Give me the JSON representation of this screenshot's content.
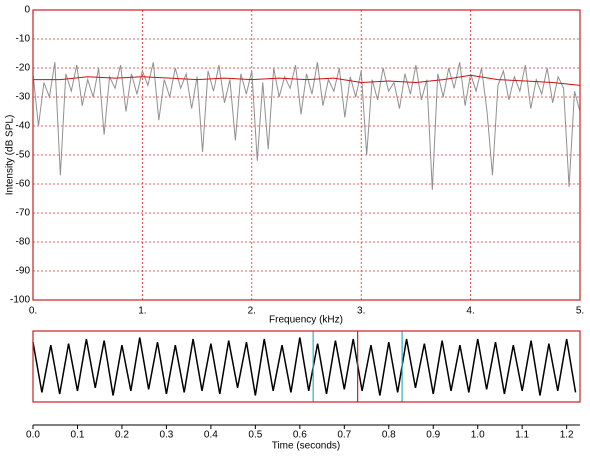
{
  "chart_data": [
    {
      "type": "line",
      "x_label": "Frequency (kHz)",
      "y_label": "Intensity (dB SPL)",
      "xlim": [
        0,
        5
      ],
      "ylim": [
        -100,
        0
      ],
      "xticks": [
        {
          "value": 0,
          "label": "0."
        },
        {
          "value": 1,
          "label": "1."
        },
        {
          "value": 2,
          "label": "2."
        },
        {
          "value": 3,
          "label": "3."
        },
        {
          "value": 4,
          "label": "4."
        },
        {
          "value": 5,
          "label": "5."
        }
      ],
      "yticks": [
        0,
        -10,
        -20,
        -30,
        -40,
        -50,
        -60,
        -70,
        -80,
        -90,
        -100
      ],
      "grid": true,
      "grid_color": "#e03030",
      "frame_color": "#cc2020",
      "series": [
        {
          "color": "#909090",
          "x": [
            0,
            0.05,
            0.1,
            0.15,
            0.2,
            0.25,
            0.3,
            0.35,
            0.4,
            0.45,
            0.5,
            0.55,
            0.6,
            0.65,
            0.7,
            0.75,
            0.8,
            0.85,
            0.9,
            0.95,
            1,
            1.05,
            1.1,
            1.15,
            1.2,
            1.25,
            1.3,
            1.35,
            1.4,
            1.45,
            1.5,
            1.55,
            1.6,
            1.65,
            1.7,
            1.75,
            1.8,
            1.85,
            1.9,
            1.95,
            2,
            2.05,
            2.1,
            2.15,
            2.2,
            2.25,
            2.3,
            2.35,
            2.4,
            2.45,
            2.5,
            2.55,
            2.6,
            2.65,
            2.7,
            2.75,
            2.8,
            2.85,
            2.9,
            2.95,
            3,
            3.05,
            3.1,
            3.15,
            3.2,
            3.25,
            3.3,
            3.35,
            3.4,
            3.45,
            3.5,
            3.55,
            3.6,
            3.65,
            3.7,
            3.75,
            3.8,
            3.85,
            3.9,
            3.95,
            4,
            4.05,
            4.1,
            4.15,
            4.2,
            4.25,
            4.3,
            4.35,
            4.4,
            4.45,
            4.5,
            4.55,
            4.6,
            4.65,
            4.7,
            4.75,
            4.8,
            4.85,
            4.9,
            4.95,
            5
          ],
          "values": [
            -22,
            -40,
            -25,
            -30,
            -18,
            -57,
            -22,
            -28,
            -19,
            -33,
            -24,
            -30,
            -20,
            -43,
            -23,
            -27,
            -19,
            -35,
            -22,
            -29,
            -21,
            -26,
            -18,
            -38,
            -24,
            -30,
            -20,
            -27,
            -22,
            -34,
            -23,
            -49,
            -21,
            -28,
            -19,
            -32,
            -24,
            -45,
            -22,
            -29,
            -21,
            -52,
            -25,
            -48,
            -20,
            -30,
            -23,
            -27,
            -19,
            -36,
            -22,
            -29,
            -18,
            -33,
            -24,
            -28,
            -20,
            -37,
            -23,
            -30,
            -21,
            -50,
            -24,
            -31,
            -20,
            -28,
            -25,
            -34,
            -22,
            -29,
            -19,
            -31,
            -24,
            -62,
            -22,
            -30,
            -20,
            -27,
            -18,
            -33,
            -22,
            -28,
            -20,
            -35,
            -57,
            -26,
            -21,
            -31,
            -23,
            -28,
            -19,
            -34,
            -24,
            -29,
            -20,
            -32,
            -23,
            -27,
            -61,
            -28,
            -35
          ]
        },
        {
          "color": "#cc1010",
          "x": [
            0,
            0.25,
            0.5,
            0.75,
            1,
            1.25,
            1.5,
            1.75,
            2,
            2.25,
            2.5,
            2.75,
            3,
            3.25,
            3.5,
            3.75,
            4,
            4.25,
            4.5,
            4.75,
            5
          ],
          "values": [
            -24,
            -24,
            -23,
            -23.5,
            -23,
            -23.5,
            -24,
            -23.5,
            -24,
            -23.5,
            -24,
            -23.5,
            -25,
            -24.5,
            -25,
            -24,
            -22.5,
            -24,
            -24.5,
            -25,
            -26
          ]
        }
      ]
    },
    {
      "type": "waveform",
      "x_label": "Time (seconds)",
      "xlim": [
        0,
        1.23
      ],
      "ylim": [
        -1,
        1
      ],
      "xticks": [
        {
          "value": 0,
          "label": "0.0"
        },
        0.1,
        0.2,
        0.3,
        0.4,
        0.5,
        0.6,
        0.7,
        0.8,
        0.9,
        {
          "value": 1,
          "label": "1.0"
        },
        1.1,
        1.2
      ],
      "frame_color": "#cc2020",
      "markers": [
        {
          "x": 0.63,
          "color": "#30b0c0"
        },
        {
          "x": 0.73,
          "color": "#cc2020"
        },
        {
          "x": 0.83,
          "color": "#30b0c0"
        }
      ],
      "series": [
        {
          "color": "#000000",
          "x": [
            0,
            0.02,
            0.04,
            0.06,
            0.08,
            0.1,
            0.12,
            0.14,
            0.16,
            0.18,
            0.2,
            0.22,
            0.24,
            0.26,
            0.28,
            0.3,
            0.32,
            0.34,
            0.36,
            0.38,
            0.4,
            0.42,
            0.44,
            0.46,
            0.48,
            0.5,
            0.52,
            0.54,
            0.56,
            0.58,
            0.6,
            0.62,
            0.64,
            0.66,
            0.68,
            0.7,
            0.72,
            0.74,
            0.76,
            0.78,
            0.8,
            0.82,
            0.84,
            0.86,
            0.88,
            0.9,
            0.92,
            0.94,
            0.96,
            0.98,
            1,
            1.02,
            1.04,
            1.06,
            1.08,
            1.1,
            1.12,
            1.14,
            1.16,
            1.18,
            1.2,
            1.22
          ],
          "values": [
            0.8,
            -0.85,
            0.7,
            -0.9,
            0.75,
            -0.8,
            0.9,
            -0.7,
            0.85,
            -0.95,
            0.7,
            -0.8,
            0.95,
            -0.75,
            0.8,
            -0.9,
            0.7,
            -0.85,
            0.9,
            -0.8,
            0.75,
            -0.9,
            0.85,
            -0.7,
            0.8,
            -0.95,
            0.9,
            -0.8,
            0.7,
            -0.85,
            0.95,
            -0.8,
            0.75,
            -0.9,
            0.85,
            -0.75,
            0.9,
            -0.8,
            0.7,
            -0.95,
            0.8,
            -0.85,
            0.9,
            -0.7,
            0.75,
            -0.9,
            0.85,
            -0.8,
            0.7,
            -0.85,
            0.9,
            -0.75,
            0.8,
            -0.9,
            0.7,
            -0.8,
            0.85,
            -0.95,
            0.75,
            -0.8,
            0.9,
            -0.85
          ]
        }
      ]
    }
  ]
}
